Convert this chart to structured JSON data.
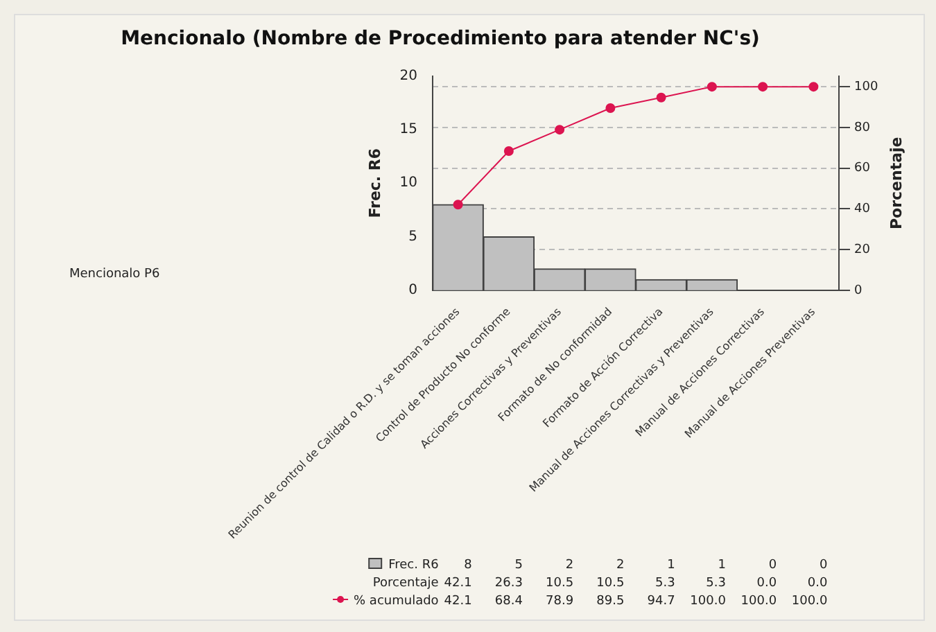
{
  "chart_data": {
    "type": "bar",
    "title": "Mencionalo (Nombre de Procedimiento para atender NC's)",
    "ylabel": "Frec. R6",
    "y2label": "Porcentaje",
    "categories": [
      "Reunion de control de Calidad o R.D. y se toman acciones",
      "Control de Producto No conforme",
      "Acciones Correctivas y Preventivas",
      "Formato de No conformidad",
      "Formato de Acción Correctiva",
      "Manual de Acciones Correctivas y Preventivas",
      "Manual de Acciones Correctivas",
      "Manual de Acciones Preventivas"
    ],
    "series": [
      {
        "name": "Frec. R6",
        "color": "#c0c0c0",
        "values": [
          8,
          5,
          2,
          2,
          1,
          1,
          0,
          0
        ],
        "value_labels": [
          "8",
          "5",
          "2",
          "2",
          "1",
          "1",
          "0",
          "0"
        ]
      },
      {
        "name": "% acumulado",
        "type": "line",
        "axis": "y2",
        "color": "#dc1450",
        "marker": "circle",
        "values": [
          42.1,
          68.4,
          78.9,
          89.5,
          94.7,
          100.0,
          100.0,
          100.0
        ],
        "value_labels": [
          "42.1",
          "68.4",
          "78.9",
          "89.5",
          "94.7",
          "100.0",
          "100.0",
          "100.0"
        ]
      }
    ],
    "ylim": [
      0,
      20
    ],
    "yticks": [
      0,
      5,
      10,
      15,
      20
    ],
    "y2lim": [
      0,
      105.3
    ],
    "y2ticks": [
      0,
      20,
      40,
      60,
      80,
      100
    ],
    "grid": "y2",
    "legend": "bottom",
    "annotations": [
      "Mencionalo P6",
      "Porcentaje",
      "42.1",
      "26.3",
      "10.5",
      "10.5",
      "5.3",
      "5.3",
      "0.0",
      "0.0"
    ]
  }
}
